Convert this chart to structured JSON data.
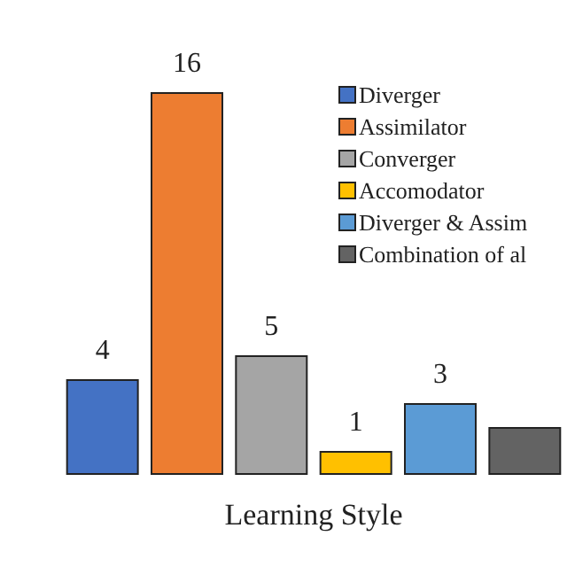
{
  "chart_data": {
    "type": "bar",
    "xlabel": "Learning Style",
    "categories": [
      null,
      null,
      null,
      null,
      null,
      null
    ],
    "stacked": true,
    "series": [
      {
        "name": "Diverger",
        "color": "#4472c4",
        "values": [
          4,
          null,
          null,
          null,
          null,
          null
        ],
        "value_labels": [
          "4",
          null,
          null,
          null,
          null,
          null
        ]
      },
      {
        "name": "Assimilator",
        "color": "#ed7d31",
        "values": [
          null,
          16,
          null,
          null,
          null,
          null
        ],
        "value_labels": [
          null,
          "16",
          null,
          null,
          null,
          null
        ]
      },
      {
        "name": "Converger",
        "color": "#a5a5a5",
        "values": [
          null,
          null,
          5,
          null,
          null,
          null
        ],
        "value_labels": [
          null,
          null,
          "5",
          null,
          null,
          null
        ]
      },
      {
        "name": "Accomodator",
        "color": "#ffc000",
        "values": [
          null,
          null,
          null,
          1,
          null,
          null
        ],
        "value_labels": [
          null,
          null,
          null,
          "1",
          null,
          null
        ]
      },
      {
        "name": "Diverger & Assim",
        "color": "#5b9bd5",
        "values": [
          null,
          null,
          null,
          null,
          3,
          null
        ],
        "value_labels": [
          null,
          null,
          null,
          null,
          "3",
          null
        ]
      },
      {
        "name": "Combination of al",
        "color": "#636363",
        "values": [
          null,
          null,
          null,
          null,
          null,
          2
        ],
        "value_labels": [
          null,
          null,
          null,
          null,
          null,
          null
        ]
      }
    ],
    "legend": "top right"
  }
}
